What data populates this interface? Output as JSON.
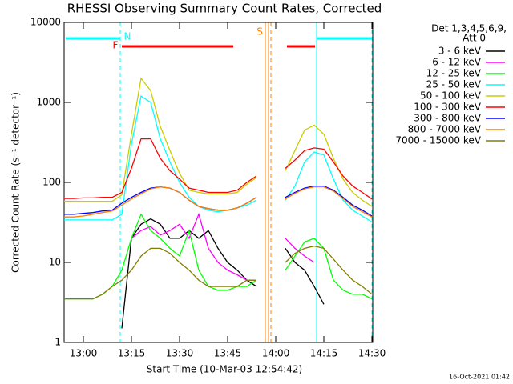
{
  "chart_data": {
    "type": "line",
    "title": "RHESSI Observing Summary Count Rates, Corrected",
    "x_label": "Start Time (10-Mar-03 12:54:42)",
    "y_label": "Corrected Count Rate (s⁻¹ detector⁻¹)",
    "legend_title": [
      "Det 1,3,4,5,6,9,",
      "Att 0"
    ],
    "annotations": [
      "N",
      "F",
      "S"
    ],
    "footer": "16-Oct-2021 01:42",
    "ylog": true,
    "ylim": [
      1,
      10000
    ],
    "yticks": [
      1,
      10,
      100,
      1000,
      10000
    ],
    "xlim": [
      "12:54",
      "14:30"
    ],
    "xticks": [
      "13:00",
      "13:15",
      "13:30",
      "13:45",
      "14:00",
      "14:15",
      "14:30"
    ],
    "x": [
      "12:54",
      "12:57",
      "13:00",
      "13:03",
      "13:06",
      "13:09",
      "13:12",
      "13:15",
      "13:18",
      "13:21",
      "13:24",
      "13:27",
      "13:30",
      "13:33",
      "13:36",
      "13:39",
      "13:42",
      "13:45",
      "13:48",
      "13:51",
      "13:54",
      "13:57",
      "14:00",
      "14:03",
      "14:06",
      "14:09",
      "14:12",
      "14:15",
      "14:18",
      "14:21",
      "14:24",
      "14:27",
      "14:30"
    ],
    "series": [
      {
        "name": "3 - 6 keV",
        "color": "#000000",
        "values": [
          null,
          null,
          null,
          null,
          null,
          null,
          1.5,
          20,
          30,
          35,
          30,
          20,
          20,
          25,
          20,
          25,
          15,
          10,
          8,
          6,
          5,
          null,
          null,
          15,
          10,
          8,
          5,
          3,
          null,
          null,
          null,
          null,
          null
        ]
      },
      {
        "name": "6 - 12 keV",
        "color": "#ff00ff",
        "values": [
          null,
          null,
          null,
          null,
          null,
          null,
          null,
          20,
          25,
          28,
          22,
          25,
          30,
          20,
          40,
          15,
          10,
          8,
          7,
          6,
          6,
          null,
          null,
          20,
          15,
          12,
          10,
          null,
          null,
          null,
          null,
          null,
          null
        ]
      },
      {
        "name": "12 - 25 keV",
        "color": "#00ff00",
        "values": [
          3.5,
          3.5,
          3.5,
          3.5,
          4,
          5,
          8,
          20,
          40,
          25,
          20,
          15,
          12,
          25,
          8,
          5,
          4.5,
          4.5,
          5,
          5,
          6,
          null,
          null,
          8,
          12,
          18,
          20,
          15,
          6,
          4.5,
          4,
          4,
          3.5
        ]
      },
      {
        "name": "25 - 50 keV",
        "color": "#00ffff",
        "values": [
          34,
          34,
          34,
          34,
          34,
          34,
          40,
          300,
          1200,
          1000,
          350,
          180,
          100,
          65,
          50,
          45,
          43,
          45,
          48,
          52,
          60,
          null,
          null,
          60,
          90,
          180,
          240,
          220,
          110,
          60,
          45,
          38,
          32
        ]
      },
      {
        "name": "50 - 100 keV",
        "color": "#cccc00",
        "values": [
          58,
          58,
          58,
          58,
          58,
          58,
          70,
          400,
          2000,
          1400,
          500,
          250,
          130,
          80,
          75,
          72,
          72,
          72,
          75,
          95,
          115,
          null,
          null,
          140,
          250,
          450,
          520,
          400,
          200,
          110,
          75,
          60,
          50
        ]
      },
      {
        "name": "100 - 300 keV",
        "color": "#ff0000",
        "values": [
          63,
          63,
          64,
          64,
          65,
          65,
          75,
          150,
          350,
          350,
          200,
          140,
          110,
          85,
          80,
          75,
          75,
          75,
          80,
          100,
          120,
          null,
          null,
          150,
          190,
          250,
          270,
          260,
          180,
          120,
          90,
          75,
          62
        ]
      },
      {
        "name": "300 - 800 keV",
        "color": "#0000ff",
        "values": [
          40,
          40,
          41,
          42,
          44,
          45,
          55,
          65,
          75,
          85,
          88,
          85,
          75,
          60,
          50,
          47,
          45,
          45,
          48,
          55,
          65,
          null,
          null,
          65,
          75,
          85,
          90,
          90,
          80,
          65,
          52,
          45,
          38
        ]
      },
      {
        "name": "800 - 7000 keV",
        "color": "#ff8000",
        "values": [
          37,
          37,
          38,
          40,
          42,
          44,
          52,
          62,
          72,
          83,
          88,
          85,
          75,
          60,
          50,
          47,
          45,
          45,
          48,
          55,
          65,
          null,
          null,
          62,
          73,
          83,
          88,
          88,
          78,
          63,
          50,
          43,
          37
        ]
      },
      {
        "name": "7000 - 15000 keV",
        "color": "#808000",
        "values": [
          3.5,
          3.5,
          3.5,
          3.5,
          4,
          5,
          6,
          8,
          12,
          15,
          15,
          13,
          10,
          8,
          6,
          5,
          5,
          5,
          5,
          6,
          6,
          null,
          null,
          10,
          13,
          15,
          16,
          15,
          11,
          8,
          6,
          5,
          4
        ]
      }
    ]
  }
}
